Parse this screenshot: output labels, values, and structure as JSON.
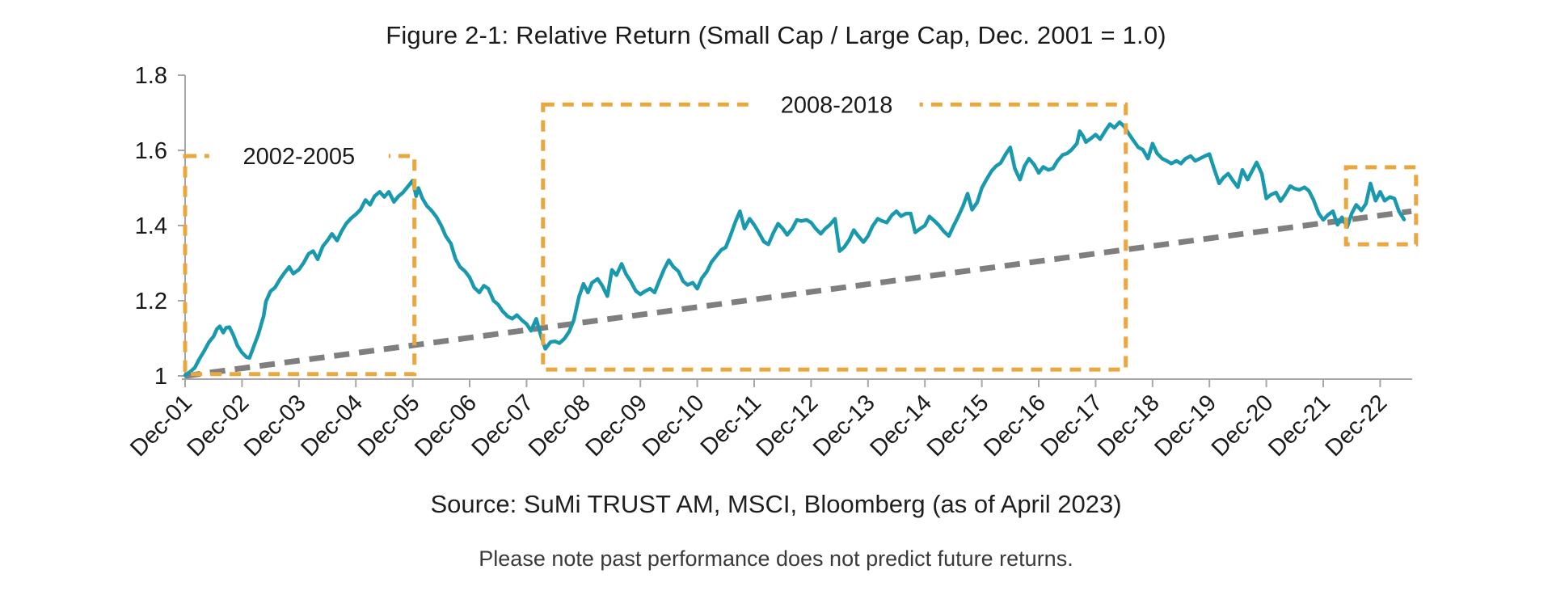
{
  "title": "Figure 2-1: Relative Return (Small Cap / Large Cap, Dec. 2001 = 1.0)",
  "source_line": "Source: SuMi TRUST AM, MSCI, Bloomberg (as of April 2023)",
  "note_line": "Please note past performance does not predict future returns.",
  "colors": {
    "line": "#1999AD",
    "trend": "#7F7F7F",
    "highlight": "#E9A73E",
    "axis": "#A6A6A6",
    "text": "#1A1A1A"
  },
  "chart_data": {
    "type": "line",
    "title": "Figure 2-1: Relative Return (Small Cap / Large Cap, Dec. 2001 = 1.0)",
    "xlabel": "",
    "ylabel": "",
    "grid": false,
    "legend": false,
    "x_axis": {
      "unit": "years since Dec-2001",
      "tick_labels": [
        "Dec-01",
        "Dec-02",
        "Dec-03",
        "Dec-04",
        "Dec-05",
        "Dec-06",
        "Dec-07",
        "Dec-08",
        "Dec-09",
        "Dec-10",
        "Dec-11",
        "Dec-12",
        "Dec-13",
        "Dec-14",
        "Dec-15",
        "Dec-16",
        "Dec-17",
        "Dec-18",
        "Dec-19",
        "Dec-20",
        "Dec-21",
        "Dec-22"
      ],
      "label_rotation_deg": -45,
      "range_years": [
        0,
        21.55
      ]
    },
    "y_axis": {
      "ticks": [
        {
          "value": 1.0,
          "label": "1"
        },
        {
          "value": 1.2,
          "label": "1.2"
        },
        {
          "value": 1.4,
          "label": "1.4"
        },
        {
          "value": 1.6,
          "label": "1.6"
        },
        {
          "value": 1.8,
          "label": "1.8"
        }
      ],
      "min": 1.0,
      "max": 1.8
    },
    "series": [
      {
        "name": "Relative Return (Small Cap / Large Cap)",
        "style": "solid",
        "points": [
          [
            0,
            1.002
          ],
          [
            0.08,
            1.01
          ],
          [
            0.17,
            1.022
          ],
          [
            0.25,
            1.045
          ],
          [
            0.33,
            1.065
          ],
          [
            0.42,
            1.09
          ],
          [
            0.5,
            1.105
          ],
          [
            0.56,
            1.125
          ],
          [
            0.61,
            1.132
          ],
          [
            0.67,
            1.115
          ],
          [
            0.72,
            1.128
          ],
          [
            0.78,
            1.13
          ],
          [
            0.85,
            1.108
          ],
          [
            0.92,
            1.08
          ],
          [
            1,
            1.062
          ],
          [
            1.08,
            1.05
          ],
          [
            1.13,
            1.048
          ],
          [
            1.21,
            1.08
          ],
          [
            1.29,
            1.112
          ],
          [
            1.38,
            1.16
          ],
          [
            1.42,
            1.198
          ],
          [
            1.5,
            1.225
          ],
          [
            1.58,
            1.235
          ],
          [
            1.67,
            1.258
          ],
          [
            1.75,
            1.275
          ],
          [
            1.83,
            1.29
          ],
          [
            1.9,
            1.272
          ],
          [
            2,
            1.283
          ],
          [
            2.08,
            1.3
          ],
          [
            2.17,
            1.325
          ],
          [
            2.25,
            1.332
          ],
          [
            2.33,
            1.31
          ],
          [
            2.42,
            1.345
          ],
          [
            2.5,
            1.36
          ],
          [
            2.58,
            1.378
          ],
          [
            2.67,
            1.36
          ],
          [
            2.75,
            1.385
          ],
          [
            2.83,
            1.405
          ],
          [
            2.92,
            1.42
          ],
          [
            3,
            1.43
          ],
          [
            3.08,
            1.442
          ],
          [
            3.17,
            1.468
          ],
          [
            3.25,
            1.455
          ],
          [
            3.33,
            1.478
          ],
          [
            3.42,
            1.49
          ],
          [
            3.5,
            1.476
          ],
          [
            3.58,
            1.49
          ],
          [
            3.67,
            1.463
          ],
          [
            3.75,
            1.478
          ],
          [
            3.83,
            1.488
          ],
          [
            3.92,
            1.505
          ],
          [
            4,
            1.52
          ],
          [
            4.06,
            1.478
          ],
          [
            4.1,
            1.5
          ],
          [
            4.17,
            1.472
          ],
          [
            4.25,
            1.452
          ],
          [
            4.33,
            1.44
          ],
          [
            4.42,
            1.422
          ],
          [
            4.5,
            1.4
          ],
          [
            4.58,
            1.372
          ],
          [
            4.67,
            1.352
          ],
          [
            4.75,
            1.312
          ],
          [
            4.83,
            1.29
          ],
          [
            4.92,
            1.278
          ],
          [
            5,
            1.262
          ],
          [
            5.08,
            1.235
          ],
          [
            5.17,
            1.222
          ],
          [
            5.25,
            1.24
          ],
          [
            5.33,
            1.232
          ],
          [
            5.42,
            1.2
          ],
          [
            5.5,
            1.19
          ],
          [
            5.58,
            1.172
          ],
          [
            5.67,
            1.158
          ],
          [
            5.75,
            1.152
          ],
          [
            5.83,
            1.162
          ],
          [
            5.92,
            1.148
          ],
          [
            6,
            1.138
          ],
          [
            6.08,
            1.12
          ],
          [
            6.17,
            1.152
          ],
          [
            6.25,
            1.108
          ],
          [
            6.33,
            1.072
          ],
          [
            6.42,
            1.09
          ],
          [
            6.5,
            1.092
          ],
          [
            6.58,
            1.087
          ],
          [
            6.67,
            1.1
          ],
          [
            6.75,
            1.118
          ],
          [
            6.83,
            1.148
          ],
          [
            6.92,
            1.21
          ],
          [
            7,
            1.245
          ],
          [
            7.08,
            1.222
          ],
          [
            7.15,
            1.248
          ],
          [
            7.25,
            1.258
          ],
          [
            7.33,
            1.24
          ],
          [
            7.42,
            1.212
          ],
          [
            7.5,
            1.282
          ],
          [
            7.58,
            1.268
          ],
          [
            7.67,
            1.298
          ],
          [
            7.75,
            1.27
          ],
          [
            7.83,
            1.252
          ],
          [
            7.92,
            1.226
          ],
          [
            8,
            1.217
          ],
          [
            8.08,
            1.225
          ],
          [
            8.17,
            1.232
          ],
          [
            8.25,
            1.222
          ],
          [
            8.33,
            1.252
          ],
          [
            8.42,
            1.285
          ],
          [
            8.5,
            1.308
          ],
          [
            8.58,
            1.29
          ],
          [
            8.67,
            1.278
          ],
          [
            8.75,
            1.252
          ],
          [
            8.83,
            1.242
          ],
          [
            8.92,
            1.248
          ],
          [
            9,
            1.232
          ],
          [
            9.08,
            1.26
          ],
          [
            9.17,
            1.278
          ],
          [
            9.25,
            1.303
          ],
          [
            9.33,
            1.318
          ],
          [
            9.42,
            1.335
          ],
          [
            9.5,
            1.342
          ],
          [
            9.58,
            1.372
          ],
          [
            9.67,
            1.41
          ],
          [
            9.75,
            1.438
          ],
          [
            9.83,
            1.392
          ],
          [
            9.92,
            1.418
          ],
          [
            10,
            1.402
          ],
          [
            10.08,
            1.382
          ],
          [
            10.17,
            1.357
          ],
          [
            10.25,
            1.35
          ],
          [
            10.33,
            1.378
          ],
          [
            10.42,
            1.405
          ],
          [
            10.5,
            1.392
          ],
          [
            10.58,
            1.375
          ],
          [
            10.67,
            1.392
          ],
          [
            10.75,
            1.415
          ],
          [
            10.83,
            1.412
          ],
          [
            10.92,
            1.415
          ],
          [
            11,
            1.408
          ],
          [
            11.08,
            1.392
          ],
          [
            11.17,
            1.378
          ],
          [
            11.25,
            1.392
          ],
          [
            11.33,
            1.402
          ],
          [
            11.42,
            1.418
          ],
          [
            11.5,
            1.332
          ],
          [
            11.58,
            1.342
          ],
          [
            11.67,
            1.362
          ],
          [
            11.75,
            1.388
          ],
          [
            11.83,
            1.372
          ],
          [
            11.92,
            1.356
          ],
          [
            12,
            1.372
          ],
          [
            12.08,
            1.398
          ],
          [
            12.17,
            1.418
          ],
          [
            12.25,
            1.412
          ],
          [
            12.33,
            1.408
          ],
          [
            12.42,
            1.428
          ],
          [
            12.5,
            1.438
          ],
          [
            12.58,
            1.425
          ],
          [
            12.67,
            1.432
          ],
          [
            12.75,
            1.432
          ],
          [
            12.83,
            1.382
          ],
          [
            12.92,
            1.392
          ],
          [
            13,
            1.4
          ],
          [
            13.08,
            1.424
          ],
          [
            13.17,
            1.412
          ],
          [
            13.25,
            1.4
          ],
          [
            13.33,
            1.385
          ],
          [
            13.42,
            1.372
          ],
          [
            13.5,
            1.398
          ],
          [
            13.58,
            1.422
          ],
          [
            13.67,
            1.452
          ],
          [
            13.75,
            1.485
          ],
          [
            13.83,
            1.442
          ],
          [
            13.92,
            1.462
          ],
          [
            14,
            1.5
          ],
          [
            14.08,
            1.522
          ],
          [
            14.17,
            1.545
          ],
          [
            14.25,
            1.558
          ],
          [
            14.33,
            1.566
          ],
          [
            14.42,
            1.59
          ],
          [
            14.5,
            1.608
          ],
          [
            14.58,
            1.552
          ],
          [
            14.67,
            1.522
          ],
          [
            14.75,
            1.558
          ],
          [
            14.83,
            1.578
          ],
          [
            14.92,
            1.562
          ],
          [
            15,
            1.54
          ],
          [
            15.08,
            1.556
          ],
          [
            15.17,
            1.548
          ],
          [
            15.25,
            1.552
          ],
          [
            15.33,
            1.572
          ],
          [
            15.42,
            1.588
          ],
          [
            15.5,
            1.592
          ],
          [
            15.58,
            1.602
          ],
          [
            15.67,
            1.618
          ],
          [
            15.72,
            1.651
          ],
          [
            15.78,
            1.638
          ],
          [
            15.83,
            1.622
          ],
          [
            15.92,
            1.632
          ],
          [
            16,
            1.642
          ],
          [
            16.08,
            1.63
          ],
          [
            16.17,
            1.652
          ],
          [
            16.25,
            1.67
          ],
          [
            16.33,
            1.66
          ],
          [
            16.42,
            1.675
          ],
          [
            16.5,
            1.664
          ],
          [
            16.58,
            1.645
          ],
          [
            16.67,
            1.625
          ],
          [
            16.75,
            1.608
          ],
          [
            16.83,
            1.602
          ],
          [
            16.92,
            1.578
          ],
          [
            17,
            1.618
          ],
          [
            17.08,
            1.592
          ],
          [
            17.17,
            1.578
          ],
          [
            17.25,
            1.572
          ],
          [
            17.33,
            1.565
          ],
          [
            17.42,
            1.572
          ],
          [
            17.5,
            1.565
          ],
          [
            17.58,
            1.578
          ],
          [
            17.67,
            1.585
          ],
          [
            17.75,
            1.572
          ],
          [
            17.83,
            1.578
          ],
          [
            17.92,
            1.585
          ],
          [
            18,
            1.59
          ],
          [
            18.08,
            1.552
          ],
          [
            18.17,
            1.512
          ],
          [
            18.25,
            1.528
          ],
          [
            18.33,
            1.538
          ],
          [
            18.42,
            1.518
          ],
          [
            18.5,
            1.502
          ],
          [
            18.58,
            1.548
          ],
          [
            18.67,
            1.522
          ],
          [
            18.75,
            1.545
          ],
          [
            18.83,
            1.568
          ],
          [
            18.92,
            1.538
          ],
          [
            19,
            1.472
          ],
          [
            19.08,
            1.482
          ],
          [
            19.17,
            1.488
          ],
          [
            19.25,
            1.465
          ],
          [
            19.33,
            1.482
          ],
          [
            19.42,
            1.505
          ],
          [
            19.5,
            1.498
          ],
          [
            19.58,
            1.495
          ],
          [
            19.67,
            1.502
          ],
          [
            19.75,
            1.492
          ],
          [
            19.83,
            1.468
          ],
          [
            19.92,
            1.432
          ],
          [
            20,
            1.415
          ],
          [
            20.08,
            1.428
          ],
          [
            20.17,
            1.438
          ],
          [
            20.25,
            1.402
          ],
          [
            20.33,
            1.422
          ],
          [
            20.42,
            1.396
          ],
          [
            20.5,
            1.432
          ],
          [
            20.58,
            1.455
          ],
          [
            20.67,
            1.44
          ],
          [
            20.75,
            1.458
          ],
          [
            20.83,
            1.512
          ],
          [
            20.92,
            1.466
          ],
          [
            21,
            1.49
          ],
          [
            21.08,
            1.466
          ],
          [
            21.17,
            1.476
          ],
          [
            21.25,
            1.472
          ],
          [
            21.33,
            1.438
          ],
          [
            21.42,
            1.416
          ]
        ]
      },
      {
        "name": "Trend",
        "style": "dashed",
        "points": [
          [
            0,
            1.0
          ],
          [
            21.55,
            1.438
          ]
        ]
      }
    ],
    "highlight_boxes": [
      {
        "label": "2002-2005",
        "t0": 0.0,
        "t1": 4.03,
        "v0": 1.005,
        "v1": 1.585,
        "label_t": 2.0,
        "label_v": 1.585,
        "label_gap_w": 222
      },
      {
        "label": "2008-2018",
        "t0": 6.29,
        "t1": 16.53,
        "v0": 1.017,
        "v1": 1.722,
        "label_t": 11.45,
        "label_v": 1.722,
        "label_gap_w": 205
      },
      {
        "label": "",
        "t0": 20.4,
        "t1": 21.63,
        "v0": 1.35,
        "v1": 1.555,
        "label_t": 0,
        "label_v": 0,
        "label_gap_w": 0
      }
    ]
  }
}
